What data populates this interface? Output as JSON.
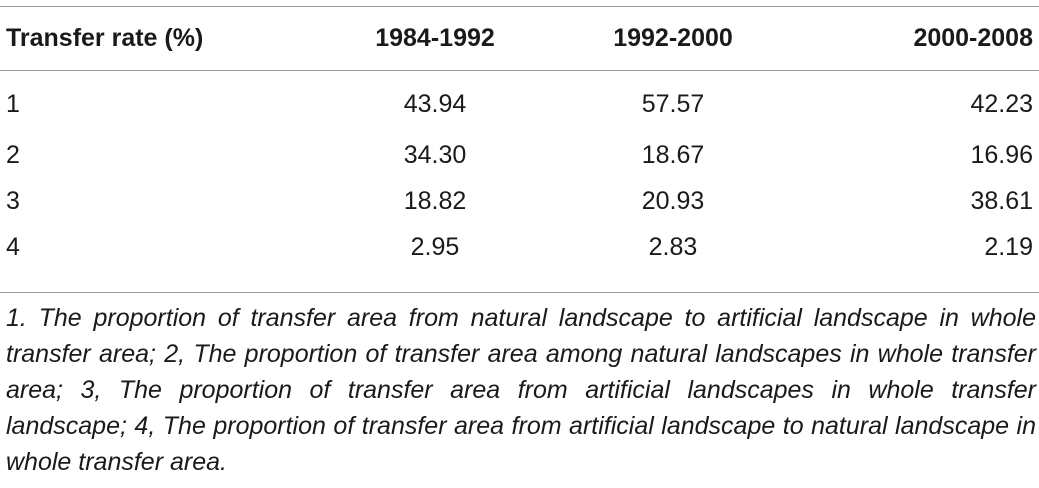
{
  "table": {
    "headers": [
      "Transfer rate (%)",
      "1984-1992",
      "1992-2000",
      "2000-2008"
    ],
    "rows": [
      [
        "1",
        "43.94",
        "57.57",
        "42.23"
      ],
      [
        "2",
        "34.30",
        "18.67",
        "16.96"
      ],
      [
        "3",
        "18.82",
        "20.93",
        "38.61"
      ],
      [
        "4",
        "2.95",
        "2.83",
        "2.19"
      ]
    ]
  },
  "footnote": "1. The proportion of transfer area from natural landscape to artificial landscape in whole transfer area; 2, The proportion of transfer area among natural landscapes in whole transfer area; 3, The proportion of transfer area from artificial landscapes in whole transfer landscape; 4, The proportion of transfer area from artificial landscape to natural landscape in whole transfer area."
}
